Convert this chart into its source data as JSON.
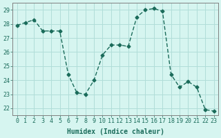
{
  "x": [
    0,
    1,
    2,
    3,
    4,
    5,
    6,
    7,
    8,
    9,
    10,
    11,
    12,
    13,
    14,
    15,
    16,
    17,
    18,
    19,
    20,
    21,
    22,
    23
  ],
  "y": [
    27.9,
    28.1,
    28.3,
    27.5,
    27.5,
    27.5,
    24.4,
    23.1,
    23.0,
    24.0,
    25.8,
    26.5,
    26.5,
    26.4,
    28.5,
    29.0,
    29.1,
    28.9,
    24.4,
    23.5,
    23.9,
    23.5,
    21.9,
    21.8
  ],
  "line_color": "#1a6b5a",
  "marker_color": "#1a6b5a",
  "bg_color": "#d6f5f0",
  "grid_color": "#b0ddd8",
  "xlabel": "Humidex (Indice chaleur)",
  "ylabel": "",
  "xlim": [
    -0.5,
    23.5
  ],
  "ylim": [
    21.5,
    29.5
  ],
  "yticks": [
    22,
    23,
    24,
    25,
    26,
    27,
    28,
    29
  ],
  "xticks": [
    0,
    1,
    2,
    3,
    4,
    5,
    6,
    7,
    8,
    9,
    10,
    11,
    12,
    13,
    14,
    15,
    16,
    17,
    18,
    19,
    20,
    21,
    22,
    23
  ]
}
